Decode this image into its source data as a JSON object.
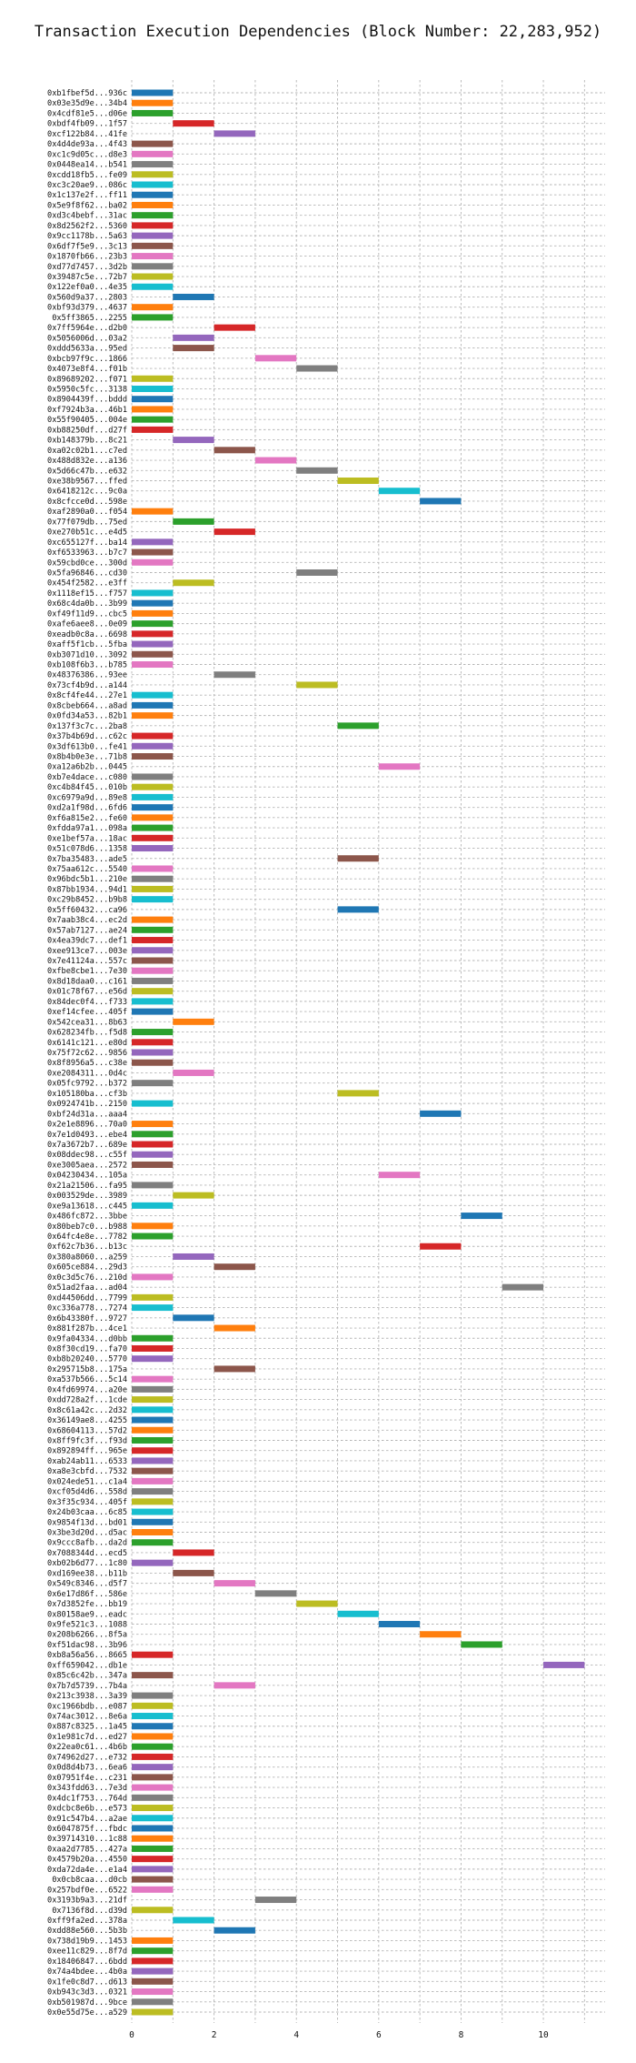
{
  "chart_data": {
    "type": "bar",
    "orientation": "horizontal",
    "title": "Transaction Execution Dependencies (Block Number: 22,283,952)",
    "xlabel": "",
    "ylabel": "",
    "xlim": [
      0,
      11.5
    ],
    "xticks": [
      0,
      2,
      4,
      6,
      8,
      10
    ],
    "grid": true,
    "colors": [
      "#1f77b4",
      "#ff7f0e",
      "#2ca02c",
      "#d62728",
      "#9467bd",
      "#8c564b",
      "#e377c2",
      "#7f7f7f",
      "#bcbd22",
      "#17becf"
    ],
    "transactions": [
      {
        "label": "0xb1fbef5d...936c",
        "start": 0
      },
      {
        "label": "0x03e35d9e...34b4",
        "start": 0
      },
      {
        "label": "0x4cdf81e5...d06e",
        "start": 0
      },
      {
        "label": "0xbdf4fb09...1f57",
        "start": 1
      },
      {
        "label": "0xcf122b84...41fe",
        "start": 2
      },
      {
        "label": "0x4d4de93a...4f43",
        "start": 0
      },
      {
        "label": "0xc1c9d05c...d8e3",
        "start": 0
      },
      {
        "label": "0x0448ea14...b541",
        "start": 0
      },
      {
        "label": "0xcdd18fb5...fe09",
        "start": 0
      },
      {
        "label": "0xc3c20ae9...086c",
        "start": 0
      },
      {
        "label": "0x1c137e2f...ff11",
        "start": 0
      },
      {
        "label": "0x5e9f8f62...ba02",
        "start": 0
      },
      {
        "label": "0xd3c4bebf...31ac",
        "start": 0
      },
      {
        "label": "0x8d2562f2...5360",
        "start": 0
      },
      {
        "label": "0x9cc1178b...5a63",
        "start": 0
      },
      {
        "label": "0x6df7f5e9...3c13",
        "start": 0
      },
      {
        "label": "0x1870fb66...23b3",
        "start": 0
      },
      {
        "label": "0xd77d7457...3d2b",
        "start": 0
      },
      {
        "label": "0x39487c5e...72b7",
        "start": 0
      },
      {
        "label": "0x122ef0a0...4e35",
        "start": 0
      },
      {
        "label": "0x560d9a37...2803",
        "start": 1
      },
      {
        "label": "0xbf93d379...4637",
        "start": 0
      },
      {
        "label": "0x5ff3865...2255",
        "start": 0
      },
      {
        "label": "0x7ff5964e...d2b0",
        "start": 2
      },
      {
        "label": "0x5056006d...03a2",
        "start": 1
      },
      {
        "label": "0xddd5633a...95ed",
        "start": 1
      },
      {
        "label": "0xbcb97f9c...1866",
        "start": 3
      },
      {
        "label": "0x4073e8f4...f01b",
        "start": 4
      },
      {
        "label": "0x89689202...f071",
        "start": 0
      },
      {
        "label": "0x5950c5fc...3138",
        "start": 0
      },
      {
        "label": "0x8904439f...bddd",
        "start": 0
      },
      {
        "label": "0xf7924b3a...46b1",
        "start": 0
      },
      {
        "label": "0x55f90405...004e",
        "start": 0
      },
      {
        "label": "0xb88250df...d27f",
        "start": 0
      },
      {
        "label": "0xb148379b...8c21",
        "start": 1
      },
      {
        "label": "0xa02c02b1...c7ed",
        "start": 2
      },
      {
        "label": "0x488d832e...a136",
        "start": 3
      },
      {
        "label": "0x5d66c47b...e632",
        "start": 4
      },
      {
        "label": "0xe38b9567...ffed",
        "start": 5
      },
      {
        "label": "0x6418212c...9c0a",
        "start": 6
      },
      {
        "label": "0x8cfcce0d...598e",
        "start": 7
      },
      {
        "label": "0xaf2890a0...f054",
        "start": 0
      },
      {
        "label": "0x77f079db...75ed",
        "start": 1
      },
      {
        "label": "0xe270b51c...e4d5",
        "start": 2
      },
      {
        "label": "0xc655127f...ba14",
        "start": 0
      },
      {
        "label": "0xf6533963...b7c7",
        "start": 0
      },
      {
        "label": "0x59cbd0ce...300d",
        "start": 0
      },
      {
        "label": "0x5fa96846...cd30",
        "start": 4
      },
      {
        "label": "0x454f2582...e3ff",
        "start": 1
      },
      {
        "label": "0x1118ef15...f757",
        "start": 0
      },
      {
        "label": "0x68c4da0b...3b99",
        "start": 0
      },
      {
        "label": "0xf49f11d9...cbc5",
        "start": 0
      },
      {
        "label": "0xafe6aee8...0e09",
        "start": 0
      },
      {
        "label": "0xeadb0c8a...6698",
        "start": 0
      },
      {
        "label": "0xaff5f1cb...5fba",
        "start": 0
      },
      {
        "label": "0xb3071d10...3092",
        "start": 0
      },
      {
        "label": "0xb108f6b3...b785",
        "start": 0
      },
      {
        "label": "0x48376386...93ee",
        "start": 2
      },
      {
        "label": "0x73cf4b9d...a144",
        "start": 4
      },
      {
        "label": "0x8cf4fe44...27e1",
        "start": 0
      },
      {
        "label": "0x8cbeb664...a8ad",
        "start": 0
      },
      {
        "label": "0x0fd34a53...82b1",
        "start": 0
      },
      {
        "label": "0x137f3c7c...2ba8",
        "start": 5
      },
      {
        "label": "0x37b4b69d...c62c",
        "start": 0
      },
      {
        "label": "0x3df613b0...fe41",
        "start": 0
      },
      {
        "label": "0x8b4b0e3e...71b8",
        "start": 0
      },
      {
        "label": "0xa12a6b2b...0445",
        "start": 6
      },
      {
        "label": "0xb7e4dace...c080",
        "start": 0
      },
      {
        "label": "0xc4b84f45...010b",
        "start": 0
      },
      {
        "label": "0xc6979a9d...89e8",
        "start": 0
      },
      {
        "label": "0xd2a1f98d...6fd6",
        "start": 0
      },
      {
        "label": "0xf6a815e2...fe60",
        "start": 0
      },
      {
        "label": "0xfdda97a1...098a",
        "start": 0
      },
      {
        "label": "0xe1bef57a...18ac",
        "start": 0
      },
      {
        "label": "0x51c078d6...1358",
        "start": 0
      },
      {
        "label": "0x7ba35483...ade5",
        "start": 5
      },
      {
        "label": "0x75aa612c...5540",
        "start": 0
      },
      {
        "label": "0x96bdc5b1...210e",
        "start": 0
      },
      {
        "label": "0x87bb1934...94d1",
        "start": 0
      },
      {
        "label": "0xc29b8452...b9b8",
        "start": 0
      },
      {
        "label": "0x5ff60432...ca96",
        "start": 5
      },
      {
        "label": "0x7aab38c4...ec2d",
        "start": 0
      },
      {
        "label": "0x57ab7127...ae24",
        "start": 0
      },
      {
        "label": "0x4ea39dc7...def1",
        "start": 0
      },
      {
        "label": "0xee913ce7...003e",
        "start": 0
      },
      {
        "label": "0x7e41124a...557c",
        "start": 0
      },
      {
        "label": "0xfbe8cbe1...7e30",
        "start": 0
      },
      {
        "label": "0x8d18daa0...c161",
        "start": 0
      },
      {
        "label": "0x01c78f67...e56d",
        "start": 0
      },
      {
        "label": "0x84dec0f4...f733",
        "start": 0
      },
      {
        "label": "0xef14cfee...405f",
        "start": 0
      },
      {
        "label": "0x542cea31...8b63",
        "start": 1
      },
      {
        "label": "0x628234fb...f5d8",
        "start": 0
      },
      {
        "label": "0x6141c121...e80d",
        "start": 0
      },
      {
        "label": "0x75f72c62...9856",
        "start": 0
      },
      {
        "label": "0x8f8956a5...c38e",
        "start": 0
      },
      {
        "label": "0xe2084311...0d4c",
        "start": 1
      },
      {
        "label": "0x05fc9792...b372",
        "start": 0
      },
      {
        "label": "0x105180ba...cf3b",
        "start": 5
      },
      {
        "label": "0x0924741b...2150",
        "start": 0
      },
      {
        "label": "0xbf24d31a...aaa4",
        "start": 7
      },
      {
        "label": "0x2e1e8896...70a0",
        "start": 0
      },
      {
        "label": "0x7e1d0493...ebe4",
        "start": 0
      },
      {
        "label": "0x7a3672b7...689e",
        "start": 0
      },
      {
        "label": "0x08ddec98...c55f",
        "start": 0
      },
      {
        "label": "0xe3005aea...2572",
        "start": 0
      },
      {
        "label": "0x04230434...105a",
        "start": 6
      },
      {
        "label": "0x21a21506...fa95",
        "start": 0
      },
      {
        "label": "0x003529de...3989",
        "start": 1
      },
      {
        "label": "0xe9a13618...c445",
        "start": 0
      },
      {
        "label": "0x486fc872...3bbe",
        "start": 8
      },
      {
        "label": "0x80beb7c0...b988",
        "start": 0
      },
      {
        "label": "0x64fc4e8e...7782",
        "start": 0
      },
      {
        "label": "0xf62c7b36...b13c",
        "start": 7
      },
      {
        "label": "0x380a8060...a259",
        "start": 1
      },
      {
        "label": "0x605ce884...29d3",
        "start": 2
      },
      {
        "label": "0x0c3d5c76...210d",
        "start": 0
      },
      {
        "label": "0x51ad2faa...ad04",
        "start": 9
      },
      {
        "label": "0xd44506dd...7799",
        "start": 0
      },
      {
        "label": "0xc336a778...7274",
        "start": 0
      },
      {
        "label": "0x6b43380f...9727",
        "start": 1
      },
      {
        "label": "0x881f287b...4ce1",
        "start": 2
      },
      {
        "label": "0x9fa04334...d0bb",
        "start": 0
      },
      {
        "label": "0x8f30cd19...fa70",
        "start": 0
      },
      {
        "label": "0xb8b20240...5770",
        "start": 0
      },
      {
        "label": "0x295715b8...175a",
        "start": 2
      },
      {
        "label": "0xa537b566...5c14",
        "start": 0
      },
      {
        "label": "0x4fd69974...a20e",
        "start": 0
      },
      {
        "label": "0xdd728a2f...1cde",
        "start": 0
      },
      {
        "label": "0x8c61a42c...2d32",
        "start": 0
      },
      {
        "label": "0x36149ae8...4255",
        "start": 0
      },
      {
        "label": "0x68604113...57d2",
        "start": 0
      },
      {
        "label": "0x8ff9fc3f...f93d",
        "start": 0
      },
      {
        "label": "0x892894ff...965e",
        "start": 0
      },
      {
        "label": "0xab24ab11...6533",
        "start": 0
      },
      {
        "label": "0xa8e3cbfd...7532",
        "start": 0
      },
      {
        "label": "0x024ede51...c1a4",
        "start": 0
      },
      {
        "label": "0xcf05d4d6...558d",
        "start": 0
      },
      {
        "label": "0x3f35c934...405f",
        "start": 0
      },
      {
        "label": "0x24b03caa...6c85",
        "start": 0
      },
      {
        "label": "0x9854f13d...bd01",
        "start": 0
      },
      {
        "label": "0x3be3d20d...d5ac",
        "start": 0
      },
      {
        "label": "0x9ccc8afb...da2d",
        "start": 0
      },
      {
        "label": "0x7088344d...ecd5",
        "start": 1
      },
      {
        "label": "0xb02b6d77...1c80",
        "start": 0
      },
      {
        "label": "0xd169ee38...b11b",
        "start": 1
      },
      {
        "label": "0x549c8346...d5f7",
        "start": 2
      },
      {
        "label": "0x6e17d86f...586e",
        "start": 3
      },
      {
        "label": "0x7d3852fe...bb19",
        "start": 4
      },
      {
        "label": "0x80158ae9...eadc",
        "start": 5
      },
      {
        "label": "0x9fe521c3...1088",
        "start": 6
      },
      {
        "label": "0x208b6266...8f5a",
        "start": 7
      },
      {
        "label": "0xf51dac98...3b96",
        "start": 8
      },
      {
        "label": "0xb8a56a56...8665",
        "start": 0
      },
      {
        "label": "0xff659042...db1e",
        "start": 10
      },
      {
        "label": "0x85c6c42b...347a",
        "start": 0
      },
      {
        "label": "0x7b7d5739...7b4a",
        "start": 2
      },
      {
        "label": "0x213c3938...3a39",
        "start": 0
      },
      {
        "label": "0xc1966bdb...e087",
        "start": 0
      },
      {
        "label": "0x74ac3012...8e6a",
        "start": 0
      },
      {
        "label": "0x887c8325...1a45",
        "start": 0
      },
      {
        "label": "0x1e981c7d...ed27",
        "start": 0
      },
      {
        "label": "0x22ea0c61...4b6b",
        "start": 0
      },
      {
        "label": "0x74962d27...e732",
        "start": 0
      },
      {
        "label": "0x0d8d4b73...6ea6",
        "start": 0
      },
      {
        "label": "0x07951f4e...c231",
        "start": 0
      },
      {
        "label": "0x343fdd63...7e3d",
        "start": 0
      },
      {
        "label": "0x4dc1f753...764d",
        "start": 0
      },
      {
        "label": "0xdcbc8e6b...e573",
        "start": 0
      },
      {
        "label": "0x91c547b4...a2ae",
        "start": 0
      },
      {
        "label": "0x6047875f...fbdc",
        "start": 0
      },
      {
        "label": "0x39714310...1c88",
        "start": 0
      },
      {
        "label": "0xaa2d7785...427a",
        "start": 0
      },
      {
        "label": "0x4579b20a...4550",
        "start": 0
      },
      {
        "label": "0xda72da4e...e1a4",
        "start": 0
      },
      {
        "label": "0x0cb8caa...d0cb",
        "start": 0
      },
      {
        "label": "0x257bdf0e...6522",
        "start": 0
      },
      {
        "label": "0x3193b9a3...21df",
        "start": 3
      },
      {
        "label": "0x7136f8d...d39d",
        "start": 0
      },
      {
        "label": "0xff9fa2ed...378a",
        "start": 1
      },
      {
        "label": "0xdd88e560...5b3b",
        "start": 2
      },
      {
        "label": "0x738d19b9...1453",
        "start": 0
      },
      {
        "label": "0xee11c829...8f7d",
        "start": 0
      },
      {
        "label": "0x18406847...6bdd",
        "start": 0
      },
      {
        "label": "0x74a4bdee...4b0a",
        "start": 0
      },
      {
        "label": "0x1fe0c8d7...d613",
        "start": 0
      },
      {
        "label": "0xb943c3d3...0321",
        "start": 0
      },
      {
        "label": "0xb501987d...9bce",
        "start": 0
      },
      {
        "label": "0x0e55d75e...a529",
        "start": 0
      }
    ]
  }
}
